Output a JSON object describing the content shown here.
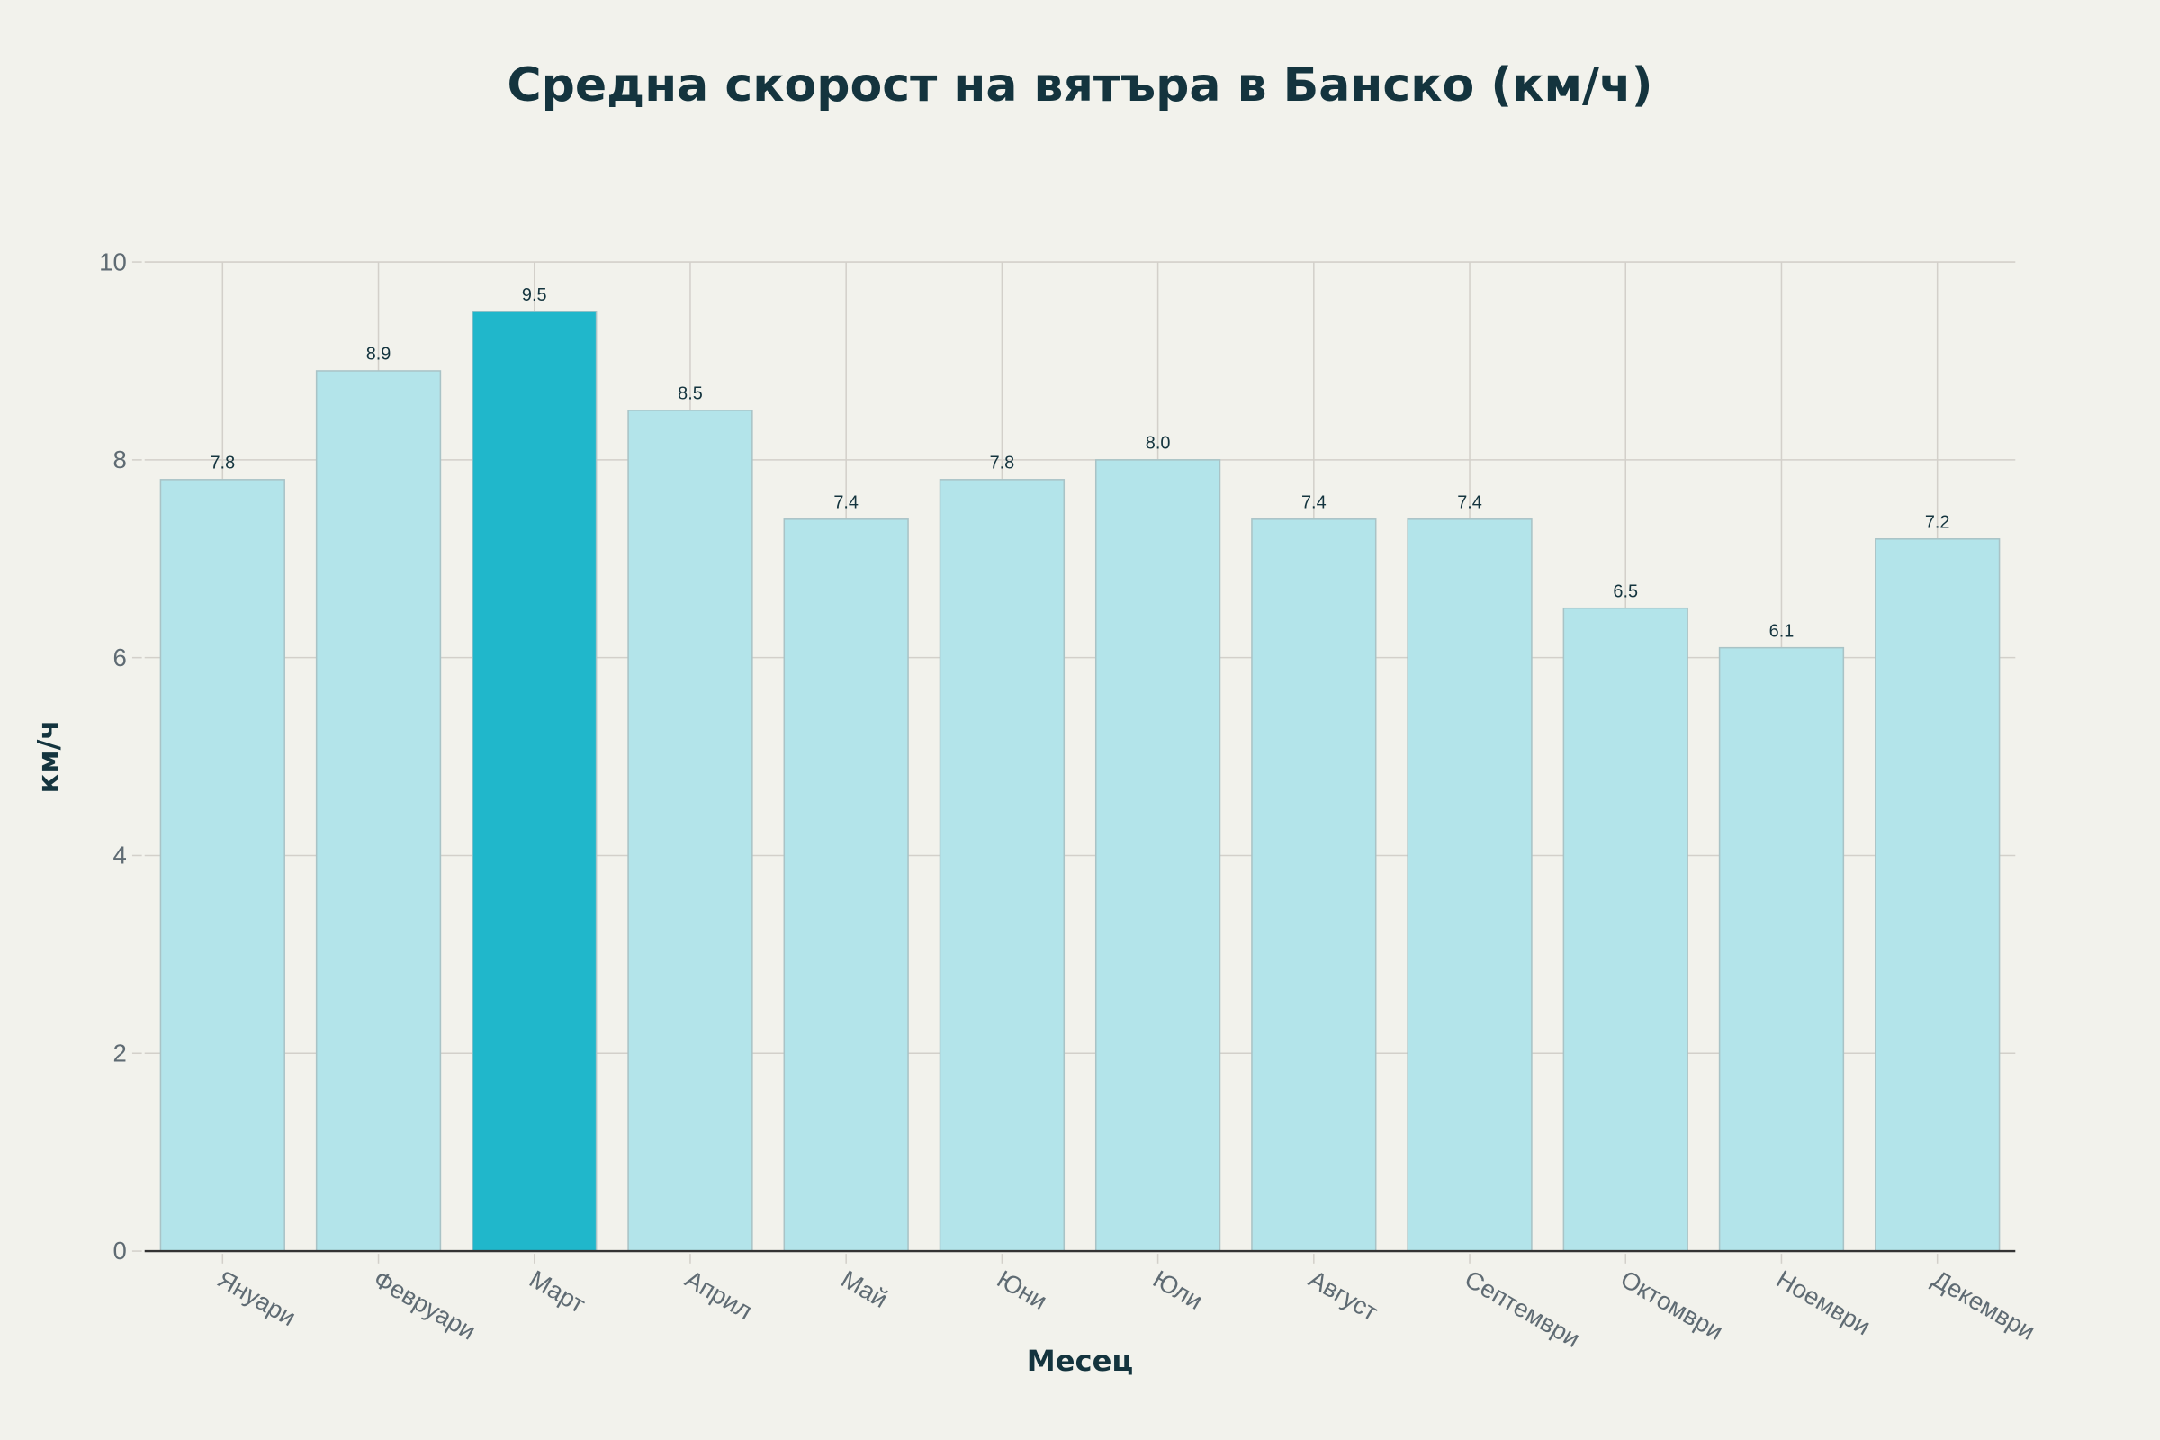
{
  "chart_data": {
    "type": "bar",
    "title": "Средна скорост на вятъра в Банско (км/ч)",
    "xlabel": "Месец",
    "ylabel": "км/ч",
    "categories": [
      "Януари",
      "Февруари",
      "Март",
      "Април",
      "Май",
      "Юни",
      "Юли",
      "Август",
      "Септември",
      "Октомври",
      "Ноември",
      "Декември"
    ],
    "values": [
      7.8,
      8.9,
      9.5,
      8.5,
      7.4,
      7.8,
      8.0,
      7.4,
      7.4,
      6.5,
      6.1,
      7.2
    ],
    "data_labels": [
      "7.8",
      "8.9",
      "9.5",
      "8.5",
      "7.4",
      "7.8",
      "8.0",
      "7.4",
      "7.4",
      "6.5",
      "6.1",
      "7.2"
    ],
    "ylim": [
      0,
      10
    ],
    "yticks": [
      0,
      2,
      4,
      6,
      8,
      10
    ],
    "grid": true,
    "highlight_category": "Март",
    "colors": {
      "bar": "#b3e4ea",
      "highlight": "#20b7cb",
      "bar_edge": "#a9c3c6",
      "background": "#f2f2ec",
      "text": "#14343e"
    }
  }
}
